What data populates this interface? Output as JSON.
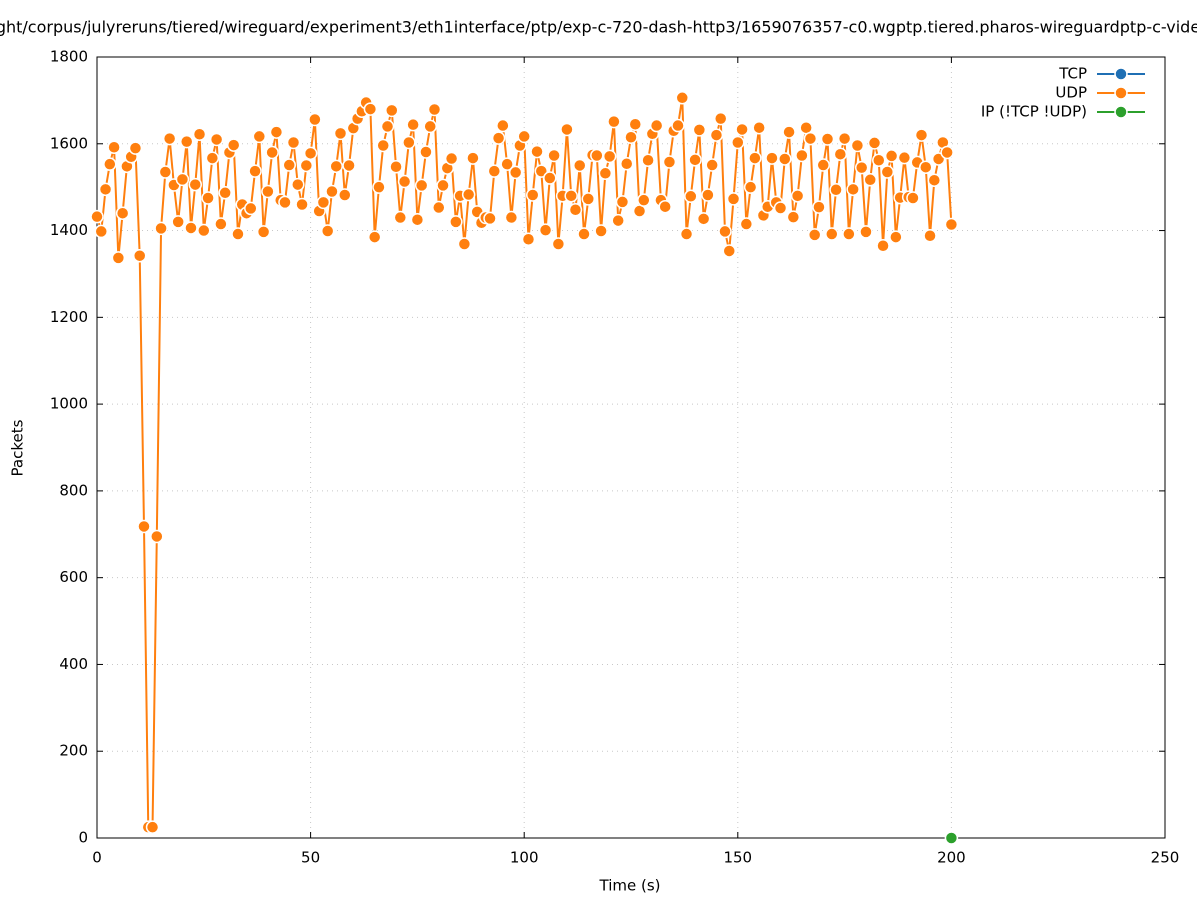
{
  "chart_data": {
    "type": "line",
    "title": "ght/corpus/julyreruns/tiered/wireguard/experiment3/eth1interface/ptp/exp-c-720-dash-http3/1659076357-c0.wgptp.tiered.pharos-wireguardptp-c-vide",
    "x_label": "Time (s)",
    "y_label": "Packets",
    "xlim": [
      0,
      250
    ],
    "xticks": [
      0,
      50,
      100,
      150,
      200,
      250
    ],
    "ylim": [
      0,
      1800
    ],
    "yticks": [
      0,
      200,
      400,
      600,
      800,
      1000,
      1200,
      1400,
      1600,
      1800
    ],
    "grid": true,
    "legend": "top-right",
    "series": [
      {
        "name": "TCP",
        "color": "#1f6fb4",
        "x": [],
        "values": []
      },
      {
        "name": "UDP",
        "color": "#ff7f0e",
        "x": [
          0,
          1,
          2,
          3,
          4,
          5,
          6,
          7,
          8,
          9,
          10,
          11,
          12,
          13,
          14,
          15,
          16,
          17,
          18,
          19,
          20,
          21,
          22,
          23,
          24,
          25,
          26,
          27,
          28,
          29,
          30,
          31,
          32,
          33,
          34,
          35,
          36,
          37,
          38,
          39,
          40,
          41,
          42,
          43,
          44,
          45,
          46,
          47,
          48,
          49,
          50,
          51,
          52,
          53,
          54,
          55,
          56,
          57,
          58,
          59,
          60,
          61,
          62,
          63,
          64,
          65,
          66,
          67,
          68,
          69,
          70,
          71,
          72,
          73,
          74,
          75,
          76,
          77,
          78,
          79,
          80,
          81,
          82,
          83,
          84,
          85,
          86,
          87,
          88,
          89,
          90,
          91,
          92,
          93,
          94,
          95,
          96,
          97,
          98,
          99,
          100,
          101,
          102,
          103,
          104,
          105,
          106,
          107,
          108,
          109,
          110,
          111,
          112,
          113,
          114,
          115,
          116,
          117,
          118,
          119,
          120,
          121,
          122,
          123,
          124,
          125,
          126,
          127,
          128,
          129,
          130,
          131,
          132,
          133,
          134,
          135,
          136,
          137,
          138,
          139,
          140,
          141,
          142,
          143,
          144,
          145,
          146,
          147,
          148,
          149,
          150,
          151,
          152,
          153,
          154,
          155,
          156,
          157,
          158,
          159,
          160,
          161,
          162,
          163,
          164,
          165,
          166,
          167,
          168,
          169,
          170,
          171,
          172,
          173,
          174,
          175,
          176,
          177,
          178,
          179,
          180,
          181,
          182,
          183,
          184,
          185,
          186,
          187,
          188,
          189,
          190,
          191,
          192,
          193,
          194,
          195,
          196,
          197,
          198,
          199,
          200
        ],
        "values": [
          1432,
          1398,
          1495,
          1553,
          1592,
          1337,
          1440,
          1548,
          1570,
          1590,
          1342,
          718,
          25,
          25,
          695,
          1405,
          1535,
          1612,
          1505,
          1420,
          1518,
          1605,
          1406,
          1506,
          1622,
          1400,
          1475,
          1567,
          1610,
          1415,
          1487,
          1580,
          1597,
          1392,
          1460,
          1440,
          1451,
          1537,
          1617,
          1397,
          1490,
          1580,
          1627,
          1470,
          1465,
          1551,
          1603,
          1506,
          1460,
          1550,
          1578,
          1656,
          1445,
          1465,
          1399,
          1490,
          1548,
          1624,
          1482,
          1550,
          1636,
          1658,
          1675,
          1695,
          1680,
          1385,
          1500,
          1596,
          1640,
          1677,
          1547,
          1430,
          1513,
          1603,
          1644,
          1425,
          1504,
          1581,
          1640,
          1679,
          1453,
          1504,
          1544,
          1566,
          1420,
          1480,
          1369,
          1483,
          1567,
          1443,
          1418,
          1430,
          1428,
          1537,
          1613,
          1642,
          1553,
          1430,
          1534,
          1596,
          1617,
          1380,
          1482,
          1582,
          1537,
          1401,
          1521,
          1573,
          1369,
          1480,
          1633,
          1480,
          1448,
          1550,
          1392,
          1473,
          1574,
          1573,
          1399,
          1532,
          1571,
          1651,
          1423,
          1466,
          1554,
          1615,
          1645,
          1445,
          1470,
          1562,
          1623,
          1642,
          1470,
          1455,
          1558,
          1630,
          1642,
          1706,
          1392,
          1479,
          1563,
          1632,
          1427,
          1482,
          1551,
          1620,
          1658,
          1398,
          1353,
          1473,
          1603,
          1633,
          1415,
          1500,
          1567,
          1637,
          1435,
          1455,
          1567,
          1465,
          1452,
          1565,
          1627,
          1431,
          1480,
          1573,
          1637,
          1612,
          1390,
          1454,
          1551,
          1611,
          1392,
          1494,
          1576,
          1612,
          1392,
          1495,
          1596,
          1545,
          1397,
          1517,
          1602,
          1562,
          1365,
          1535,
          1572,
          1385,
          1476,
          1568,
          1477,
          1475,
          1557,
          1620,
          1546,
          1388,
          1516,
          1565,
          1603,
          1580,
          1414
        ]
      },
      {
        "name": "IP (!TCP  !UDP)",
        "color": "#2ca02c",
        "x": [
          200
        ],
        "values": [
          0
        ]
      }
    ]
  }
}
